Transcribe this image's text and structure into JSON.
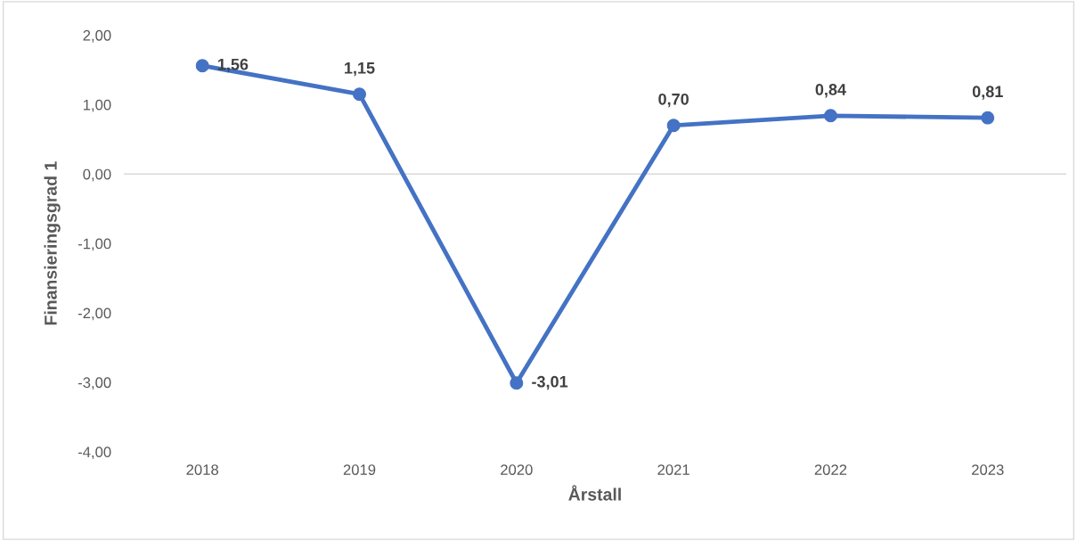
{
  "chart_data": {
    "type": "line",
    "xlabel": "Årstall",
    "ylabel": "Finansieringsgrad 1",
    "categories": [
      "2018",
      "2019",
      "2020",
      "2021",
      "2022",
      "2023"
    ],
    "series": [
      {
        "color": "#4472c4",
        "values": [
          1.56,
          1.15,
          -3.01,
          0.7,
          0.84,
          0.81
        ],
        "value_labels": [
          "1,56",
          "1,15",
          "-3,01",
          "0,70",
          "0,84",
          "0,81"
        ]
      }
    ],
    "ylim": [
      -4,
      2
    ],
    "yticks": [
      {
        "value": -4,
        "label": "-4,00"
      },
      {
        "value": -3,
        "label": "-3,00"
      },
      {
        "value": -2,
        "label": "-2,00"
      },
      {
        "value": -1,
        "label": "-1,00"
      },
      {
        "value": 0,
        "label": "0,00"
      },
      {
        "value": 1,
        "label": "1,00"
      },
      {
        "value": 2,
        "label": "2,00"
      }
    ],
    "ref_lines": [
      {
        "axis": "y",
        "value": 0,
        "color": "#d9d9d9"
      }
    ],
    "grid": false,
    "legend": false,
    "marker": "circle",
    "line_style": "solid"
  }
}
